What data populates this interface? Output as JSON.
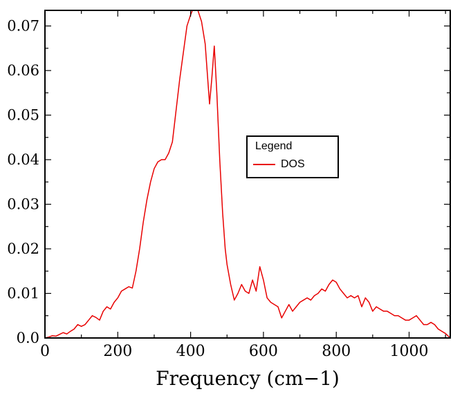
{
  "colors": {
    "line": "#e80000",
    "frame": "#000000",
    "background": "#ffffff",
    "text": "#000000"
  },
  "legend": {
    "title": "Legend",
    "entries": [
      {
        "label": "DOS",
        "color": "#e80000"
      }
    ]
  },
  "chart_data": {
    "type": "line",
    "title": "",
    "xlabel": "Frequency (cm−1)",
    "ylabel": "",
    "xlim": [
      0,
      1113
    ],
    "ylim": [
      0,
      0.0735
    ],
    "grid": false,
    "legend_position": "inside-center-right",
    "x_ticks": {
      "values": [
        0,
        200,
        400,
        600,
        800,
        1000
      ],
      "labels": [
        "0",
        "200",
        "400",
        "600",
        "800",
        "1000"
      ],
      "minor_step": 100
    },
    "y_ticks": {
      "values": [
        0,
        0.01,
        0.02,
        0.03,
        0.04,
        0.05,
        0.06,
        0.07
      ],
      "labels": [
        "0.0",
        "0.01",
        "0.02",
        "0.03",
        "0.04",
        "0.05",
        "0.06",
        "0.07"
      ],
      "minor_step": 0.005
    },
    "series": [
      {
        "name": "DOS",
        "color": "#e80000",
        "points": [
          [
            0,
            0
          ],
          [
            10,
            0.0002
          ],
          [
            20,
            0.0005
          ],
          [
            30,
            0.0004
          ],
          [
            40,
            0.0008
          ],
          [
            50,
            0.0012
          ],
          [
            60,
            0.0009
          ],
          [
            70,
            0.0015
          ],
          [
            80,
            0.002
          ],
          [
            90,
            0.003
          ],
          [
            100,
            0.0026
          ],
          [
            110,
            0.003
          ],
          [
            120,
            0.004
          ],
          [
            130,
            0.005
          ],
          [
            140,
            0.0046
          ],
          [
            150,
            0.004
          ],
          [
            160,
            0.006
          ],
          [
            170,
            0.007
          ],
          [
            180,
            0.0065
          ],
          [
            190,
            0.008
          ],
          [
            200,
            0.009
          ],
          [
            210,
            0.0105
          ],
          [
            220,
            0.011
          ],
          [
            230,
            0.0115
          ],
          [
            240,
            0.0112
          ],
          [
            250,
            0.015
          ],
          [
            260,
            0.02
          ],
          [
            270,
            0.026
          ],
          [
            280,
            0.031
          ],
          [
            290,
            0.035
          ],
          [
            300,
            0.038
          ],
          [
            310,
            0.0395
          ],
          [
            320,
            0.04
          ],
          [
            330,
            0.04
          ],
          [
            340,
            0.0415
          ],
          [
            350,
            0.044
          ],
          [
            360,
            0.051
          ],
          [
            370,
            0.058
          ],
          [
            380,
            0.064
          ],
          [
            390,
            0.07
          ],
          [
            400,
            0.0725
          ],
          [
            405,
            0.0735
          ],
          [
            420,
            0.0735
          ],
          [
            430,
            0.071
          ],
          [
            440,
            0.066
          ],
          [
            448,
            0.057
          ],
          [
            452,
            0.0525
          ],
          [
            458,
            0.058
          ],
          [
            465,
            0.0655
          ],
          [
            472,
            0.055
          ],
          [
            480,
            0.04
          ],
          [
            488,
            0.028
          ],
          [
            495,
            0.02
          ],
          [
            500,
            0.0165
          ],
          [
            510,
            0.012
          ],
          [
            520,
            0.0085
          ],
          [
            530,
            0.01
          ],
          [
            540,
            0.012
          ],
          [
            550,
            0.0105
          ],
          [
            560,
            0.01
          ],
          [
            570,
            0.013
          ],
          [
            580,
            0.0105
          ],
          [
            590,
            0.016
          ],
          [
            600,
            0.013
          ],
          [
            610,
            0.009
          ],
          [
            620,
            0.008
          ],
          [
            630,
            0.0075
          ],
          [
            640,
            0.007
          ],
          [
            650,
            0.0045
          ],
          [
            660,
            0.006
          ],
          [
            670,
            0.0075
          ],
          [
            680,
            0.006
          ],
          [
            690,
            0.007
          ],
          [
            700,
            0.008
          ],
          [
            710,
            0.0085
          ],
          [
            720,
            0.009
          ],
          [
            730,
            0.0085
          ],
          [
            740,
            0.0095
          ],
          [
            750,
            0.01
          ],
          [
            760,
            0.011
          ],
          [
            770,
            0.0105
          ],
          [
            780,
            0.012
          ],
          [
            790,
            0.013
          ],
          [
            800,
            0.0125
          ],
          [
            810,
            0.011
          ],
          [
            820,
            0.01
          ],
          [
            830,
            0.009
          ],
          [
            840,
            0.0095
          ],
          [
            850,
            0.009
          ],
          [
            860,
            0.0095
          ],
          [
            870,
            0.007
          ],
          [
            880,
            0.009
          ],
          [
            890,
            0.008
          ],
          [
            900,
            0.006
          ],
          [
            910,
            0.007
          ],
          [
            920,
            0.0065
          ],
          [
            930,
            0.006
          ],
          [
            940,
            0.006
          ],
          [
            950,
            0.0055
          ],
          [
            960,
            0.005
          ],
          [
            970,
            0.005
          ],
          [
            980,
            0.0045
          ],
          [
            990,
            0.004
          ],
          [
            1000,
            0.004
          ],
          [
            1010,
            0.0045
          ],
          [
            1020,
            0.005
          ],
          [
            1030,
            0.004
          ],
          [
            1040,
            0.003
          ],
          [
            1050,
            0.003
          ],
          [
            1060,
            0.0035
          ],
          [
            1070,
            0.003
          ],
          [
            1080,
            0.002
          ],
          [
            1090,
            0.0015
          ],
          [
            1100,
            0.001
          ],
          [
            1113,
            0
          ]
        ]
      }
    ]
  }
}
